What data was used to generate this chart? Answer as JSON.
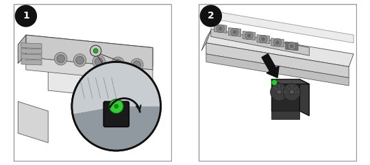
{
  "fig_width": 5.4,
  "fig_height": 2.41,
  "dpi": 100,
  "background_color": "#ffffff",
  "panel1": {
    "label": "1",
    "label_bg": "#111111",
    "label_fg": "#ffffff",
    "label_fontsize": 10,
    "bg_color": "#ffffff",
    "border_color": "#aaaaaa"
  },
  "panel2": {
    "label": "2",
    "label_bg": "#111111",
    "label_fg": "#ffffff",
    "label_fontsize": 10,
    "bg_color": "#ffffff",
    "border_color": "#aaaaaa"
  }
}
